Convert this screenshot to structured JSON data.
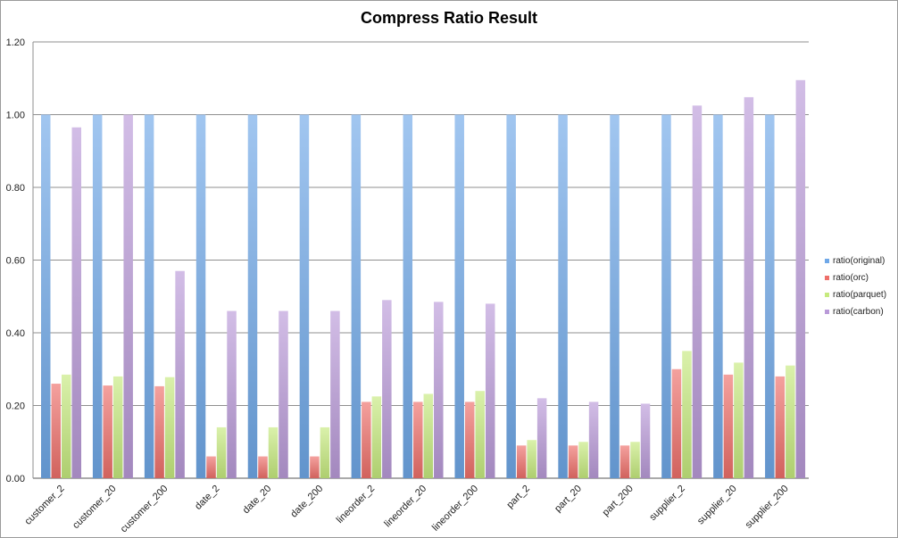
{
  "chart_data": {
    "type": "bar",
    "title": "Compress Ratio Result",
    "xlabel": "",
    "ylabel": "",
    "ylim": [
      0,
      1.2
    ],
    "yticks": [
      "0.00",
      "0.20",
      "0.40",
      "0.60",
      "0.80",
      "1.00",
      "1.20"
    ],
    "grid": true,
    "legend_position": "right",
    "categories": [
      "customer_2",
      "customer_20",
      "customer_200",
      "date_2",
      "date_20",
      "date_200",
      "lineorder_2",
      "lineorder_20",
      "lineorder_200",
      "part_2",
      "part_20",
      "part_200",
      "supplier_2",
      "supplier_20",
      "supplier_200"
    ],
    "series": [
      {
        "name": "ratio(original)",
        "color": "#6fa8e8",
        "values": [
          1.0,
          1.0,
          1.0,
          1.0,
          1.0,
          1.0,
          1.0,
          1.0,
          1.0,
          1.0,
          1.0,
          1.0,
          1.0,
          1.0,
          1.0
        ]
      },
      {
        "name": "ratio(orc)",
        "color": "#ee6f6a",
        "values": [
          0.26,
          0.255,
          0.253,
          0.06,
          0.06,
          0.06,
          0.21,
          0.21,
          0.21,
          0.09,
          0.09,
          0.09,
          0.3,
          0.285,
          0.28
        ]
      },
      {
        "name": "ratio(parquet)",
        "color": "#c6ea7e",
        "values": [
          0.285,
          0.28,
          0.278,
          0.14,
          0.14,
          0.14,
          0.225,
          0.232,
          0.24,
          0.105,
          0.1,
          0.1,
          0.35,
          0.318,
          0.31
        ]
      },
      {
        "name": "ratio(carbon)",
        "color": "#b99ad8",
        "values": [
          0.965,
          1.0,
          0.57,
          0.46,
          0.46,
          0.46,
          0.49,
          0.485,
          0.48,
          0.22,
          0.21,
          0.205,
          1.025,
          1.048,
          1.095
        ]
      }
    ]
  }
}
